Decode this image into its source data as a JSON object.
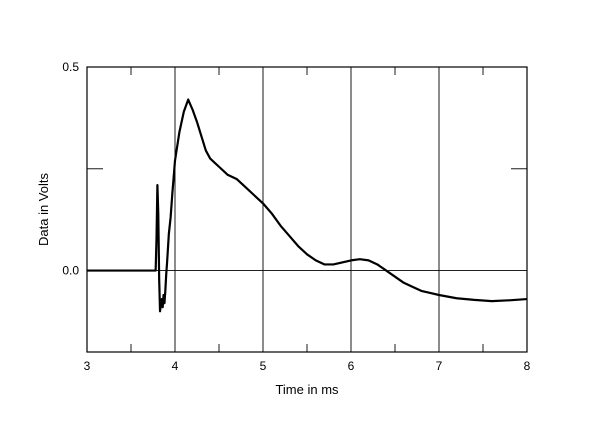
{
  "chart_data": {
    "type": "line",
    "xlabel": "Time in ms",
    "ylabel": "Data in Volts",
    "xlim": [
      3,
      8
    ],
    "ylim": [
      -0.2,
      0.5
    ],
    "x_ticks": [
      3,
      4,
      5,
      6,
      7,
      8
    ],
    "x_tick_labels": [
      "3",
      "4",
      "5",
      "6",
      "7",
      "8"
    ],
    "y_tick_labels": [
      {
        "value": 0.5,
        "label": "0.5"
      },
      {
        "value": 0.0,
        "label": "0.0"
      }
    ],
    "grid": true,
    "legend": "none",
    "line_color": "#000000",
    "series": [
      {
        "x": [
          3.0,
          3.5,
          3.78,
          3.79,
          3.8,
          3.81,
          3.82,
          3.83,
          3.84,
          3.85,
          3.86,
          3.87,
          3.88,
          3.89,
          3.9,
          3.91,
          3.93,
          3.95,
          3.97,
          4.0,
          4.05,
          4.1,
          4.15,
          4.17,
          4.2,
          4.25,
          4.3,
          4.35,
          4.4,
          4.5,
          4.6,
          4.7,
          4.8,
          4.9,
          5.0,
          5.1,
          5.2,
          5.3,
          5.4,
          5.5,
          5.6,
          5.7,
          5.8,
          5.9,
          6.0,
          6.1,
          6.2,
          6.3,
          6.4,
          6.5,
          6.6,
          6.7,
          6.8,
          6.9,
          7.0,
          7.2,
          7.4,
          7.6,
          7.8,
          8.0
        ],
        "y": [
          0.0,
          0.0,
          0.0,
          0.08,
          0.21,
          0.14,
          -0.02,
          -0.1,
          -0.08,
          -0.07,
          -0.09,
          -0.06,
          -0.08,
          -0.05,
          -0.01,
          0.02,
          0.09,
          0.13,
          0.19,
          0.27,
          0.34,
          0.39,
          0.42,
          0.41,
          0.395,
          0.365,
          0.33,
          0.295,
          0.275,
          0.255,
          0.235,
          0.225,
          0.205,
          0.185,
          0.165,
          0.14,
          0.11,
          0.085,
          0.06,
          0.04,
          0.025,
          0.015,
          0.015,
          0.02,
          0.025,
          0.028,
          0.025,
          0.015,
          0.0,
          -0.015,
          -0.03,
          -0.04,
          -0.05,
          -0.055,
          -0.06,
          -0.068,
          -0.072,
          -0.075,
          -0.073,
          -0.07
        ]
      }
    ]
  }
}
